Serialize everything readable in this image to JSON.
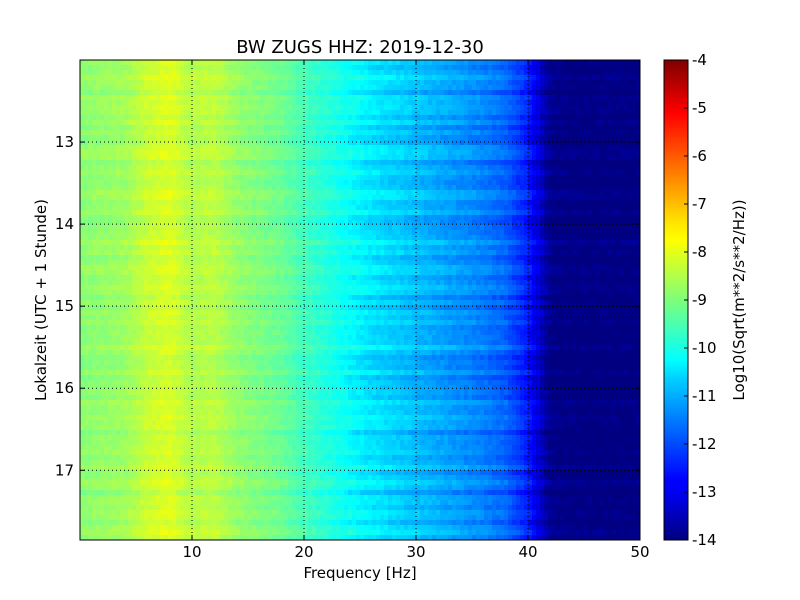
{
  "chart_data": {
    "type": "heatmap",
    "title": "BW ZUGS HHZ: 2019-12-30",
    "xlabel": "Frequency [Hz]",
    "ylabel": "Lokalzeit (UTC + 1 Stunde)",
    "xlim": [
      0,
      50
    ],
    "ylim": [
      12.0,
      17.85
    ],
    "y_inverted": true,
    "x_ticks": [
      "10",
      "20",
      "30",
      "40",
      "50"
    ],
    "x_tick_values": [
      10,
      20,
      30,
      40,
      50
    ],
    "y_ticks": [
      "13",
      "14",
      "15",
      "16",
      "17"
    ],
    "y_tick_values": [
      13,
      14,
      15,
      16,
      17
    ],
    "grid": true,
    "colorbar": {
      "label": "Log10(Sqrt(m**2/s**2/Hz))",
      "range": [
        -14,
        -4
      ],
      "ticks": [
        "-4",
        "-5",
        "-6",
        "-7",
        "-8",
        "-9",
        "-10",
        "-11",
        "-12",
        "-13",
        "-14"
      ],
      "tick_values": [
        -4,
        -5,
        -6,
        -7,
        -8,
        -9,
        -10,
        -11,
        -12,
        -13,
        -14
      ],
      "colormap": "jet"
    },
    "spectrum_profile": {
      "frequency_hz": [
        0,
        2,
        4,
        6,
        8,
        10,
        12,
        14,
        16,
        18,
        20,
        22,
        24,
        26,
        28,
        30,
        32,
        34,
        36,
        38,
        40,
        42,
        44,
        46,
        48,
        50
      ],
      "log10_amplitude": [
        -8.9,
        -8.8,
        -8.7,
        -8.3,
        -8.1,
        -8.5,
        -8.4,
        -8.8,
        -9.0,
        -9.2,
        -9.6,
        -9.9,
        -10.2,
        -10.5,
        -10.7,
        -10.9,
        -11.1,
        -11.3,
        -11.5,
        -11.8,
        -12.5,
        -13.9,
        -14.0,
        -14.0,
        -14.0,
        -14.0
      ]
    }
  }
}
